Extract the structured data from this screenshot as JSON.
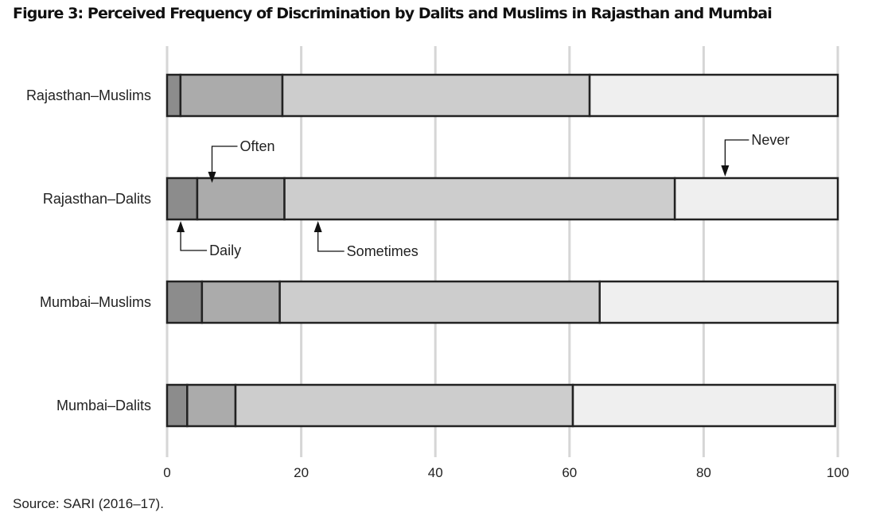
{
  "chart_data": {
    "type": "bar",
    "orientation": "horizontal",
    "stacked": true,
    "title": "Figure 3: Perceived Frequency of Discrimination by Dalits and Muslims in Rajasthan and Mumbai",
    "source": "Source: SARI (2016–17).",
    "categories": [
      "Rajasthan–Muslims",
      "Rajasthan–Dalits",
      "Mumbai–Muslims",
      "Mumbai–Dalits"
    ],
    "series": [
      {
        "name": "Daily",
        "color": "#8c8c8c",
        "values": [
          2,
          4.5,
          5.2,
          3
        ]
      },
      {
        "name": "Often",
        "color": "#ababab",
        "values": [
          15.2,
          13,
          11.6,
          7.2
        ]
      },
      {
        "name": "Sometimes",
        "color": "#cdcdcd",
        "values": [
          45.8,
          58.2,
          47.7,
          50.3
        ]
      },
      {
        "name": "Never",
        "color": "#efefef",
        "values": [
          37,
          24.3,
          35.5,
          39.1
        ]
      }
    ],
    "xlim": [
      0,
      100
    ],
    "xticks": [
      "0",
      "20",
      "40",
      "60",
      "80",
      "100"
    ],
    "grid": true,
    "legend": "inline arrow annotations on Rajasthan–Dalits bar"
  }
}
